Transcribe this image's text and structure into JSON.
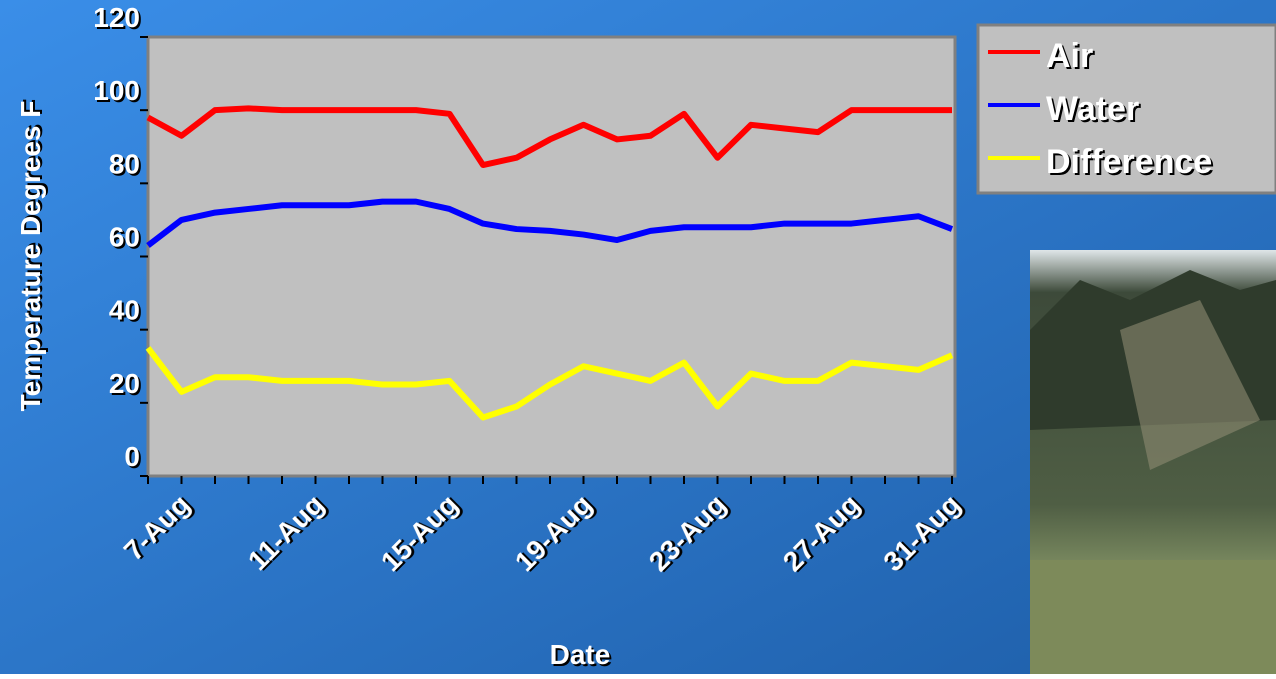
{
  "chart_data": {
    "type": "line",
    "y_label": "Temperature Degrees F",
    "x_label": "Date",
    "categories": [
      null,
      "7-Aug",
      null,
      null,
      null,
      "11-Aug",
      null,
      null,
      null,
      "15-Aug",
      null,
      null,
      null,
      "19-Aug",
      null,
      null,
      null,
      "23-Aug",
      null,
      null,
      null,
      "27-Aug",
      null,
      null,
      "31-Aug"
    ],
    "series": [
      {
        "name": "Air",
        "color": "#ff0000",
        "values": [
          98,
          93,
          100,
          100.5,
          100,
          100,
          100,
          100,
          100,
          99,
          85,
          87,
          92,
          96,
          92,
          93,
          99,
          87,
          96,
          95,
          94,
          100,
          100,
          100,
          100
        ]
      },
      {
        "name": "Water",
        "color": "#0000ff",
        "values": [
          63,
          70,
          72,
          73,
          74,
          74,
          74,
          75,
          75,
          73,
          69,
          67.5,
          67,
          66,
          64.5,
          67,
          68,
          68,
          68,
          69,
          69,
          69,
          70,
          71,
          67.5
        ]
      },
      {
        "name": "Difference",
        "color": "#ffff00",
        "values": [
          35,
          23,
          27,
          27,
          26,
          26,
          26,
          25,
          25,
          26,
          16,
          19,
          25,
          30,
          28,
          26,
          31,
          19,
          28,
          26,
          26,
          31,
          30,
          29,
          33
        ]
      }
    ],
    "ylim": [
      0,
      120
    ],
    "yticks": [
      0,
      20,
      40,
      60,
      80,
      100,
      120
    ],
    "legend": "right",
    "plot_color": "#c0c0c0"
  }
}
